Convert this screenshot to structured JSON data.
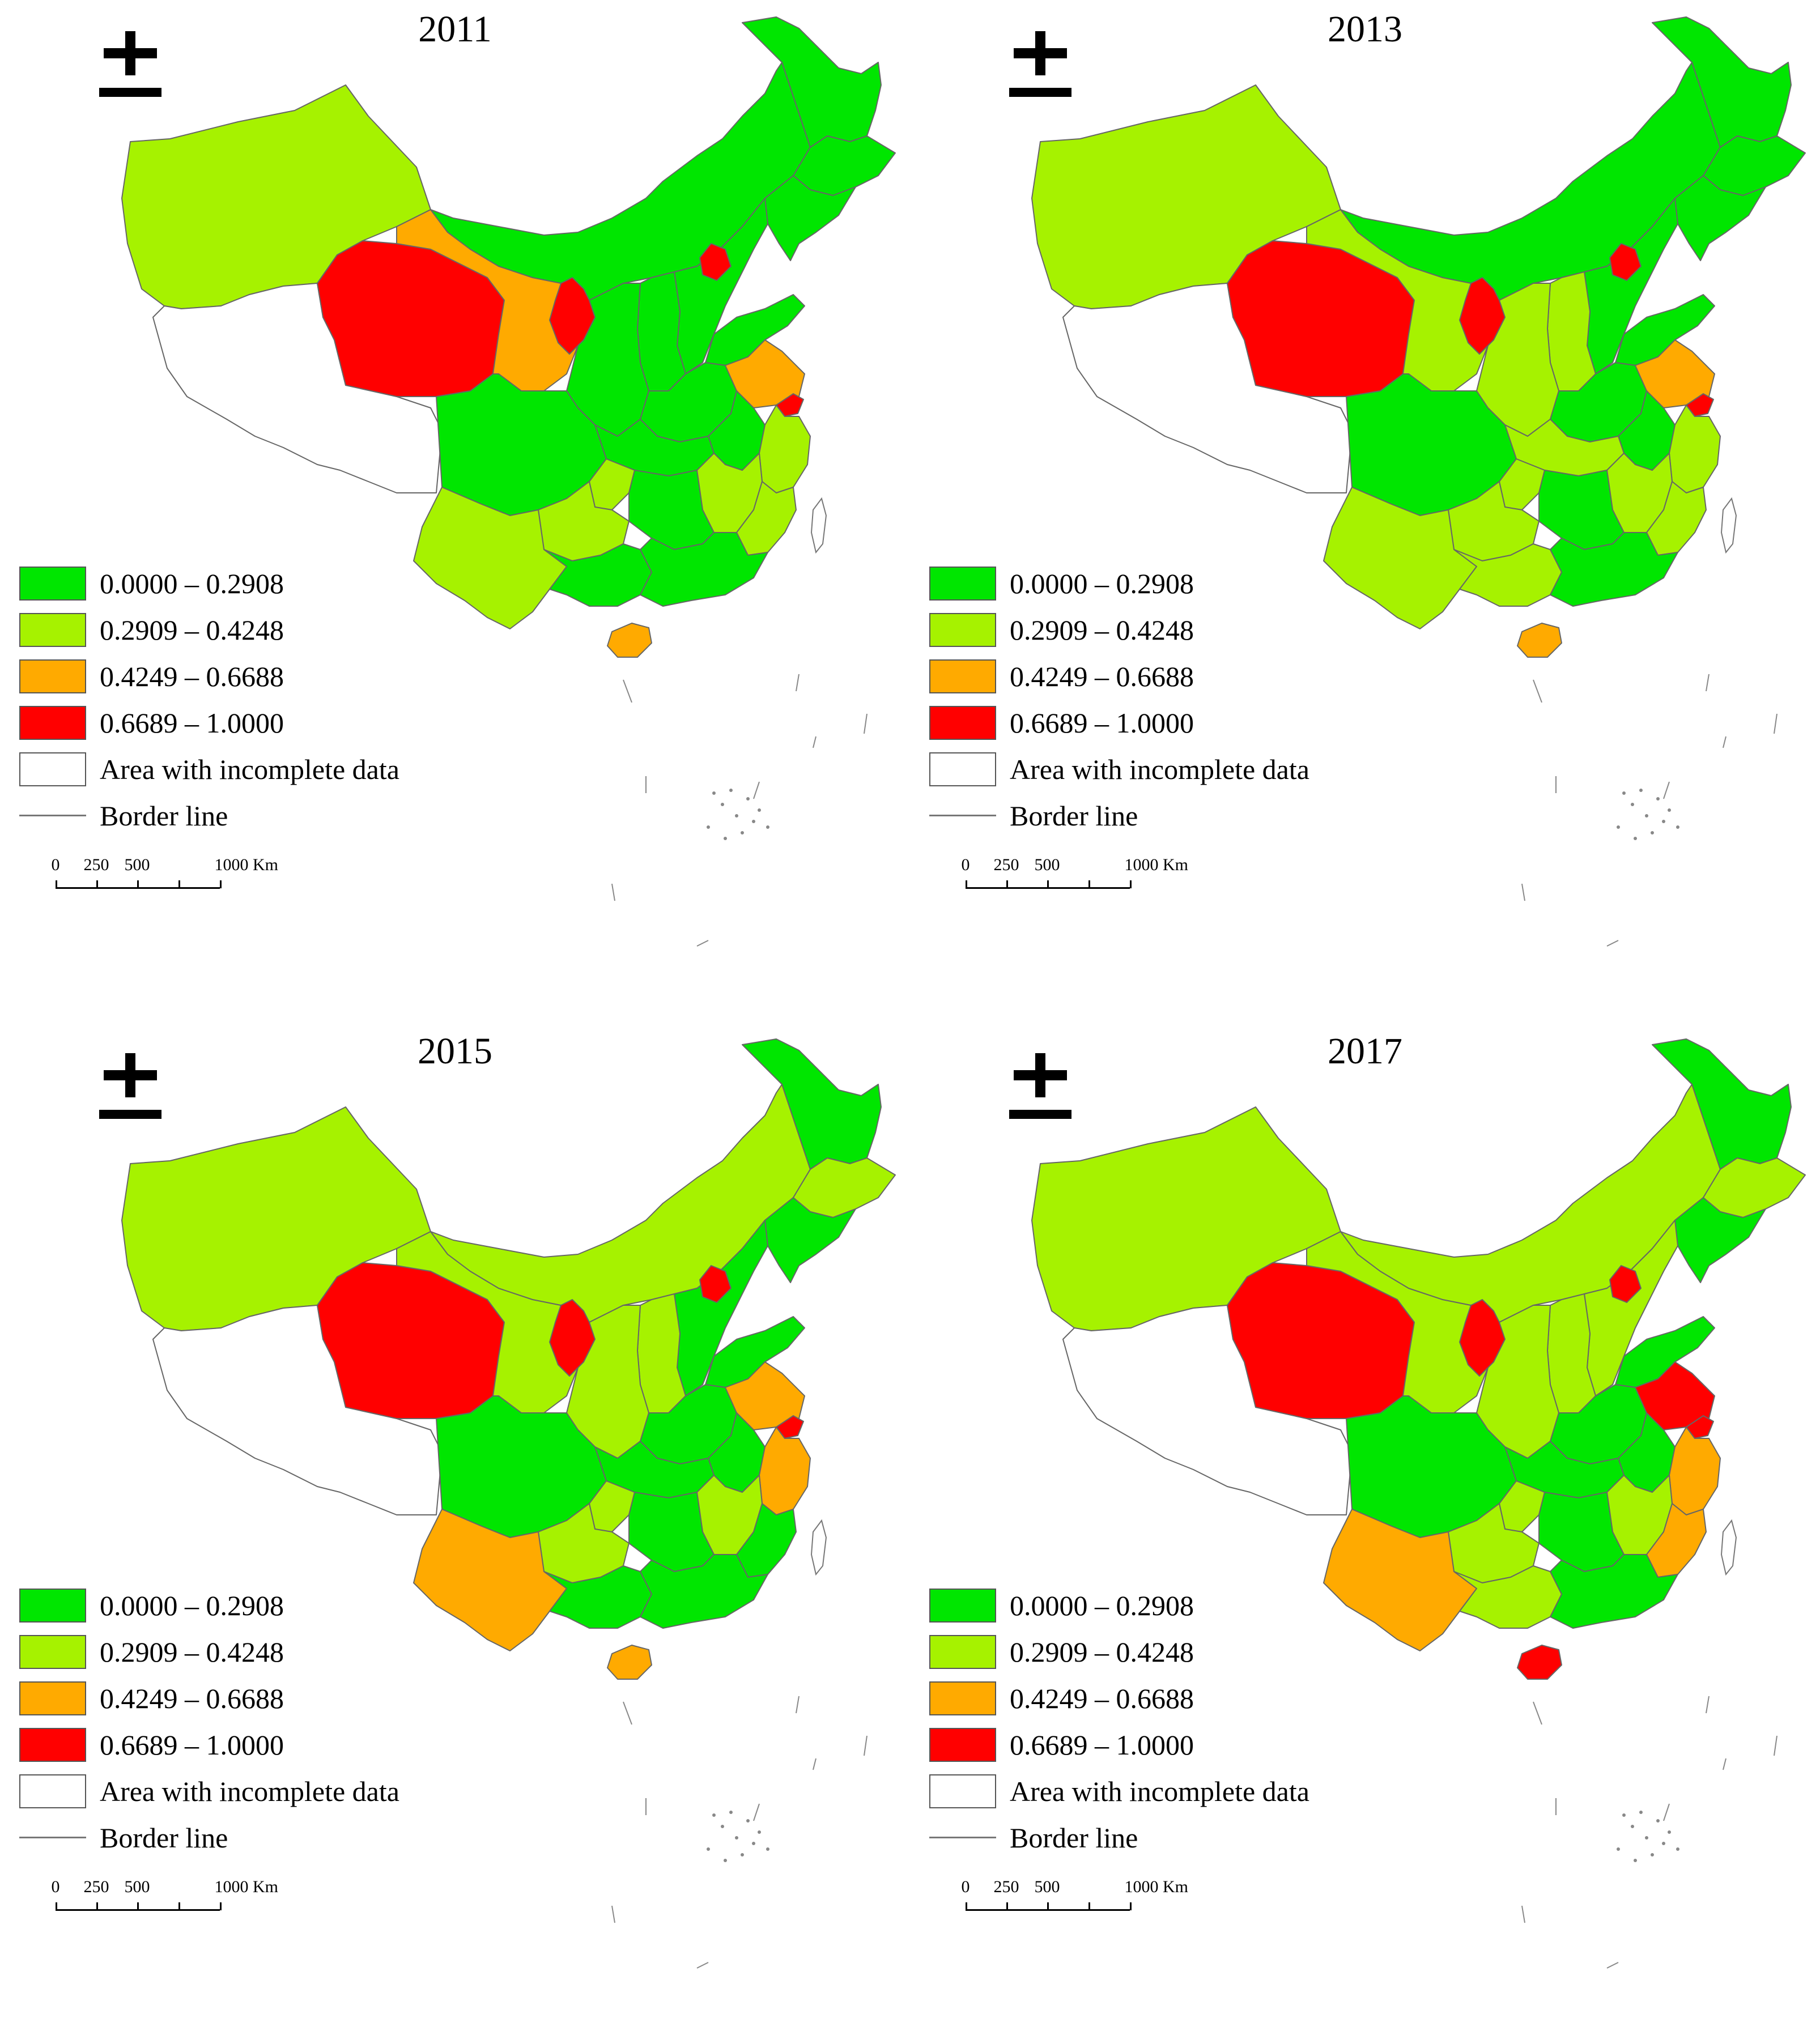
{
  "panels": [
    {
      "year": "2011",
      "colors": {
        "xinjiang": "#a6f200",
        "tibet": "#ffffff",
        "qinghai": "#ff0000",
        "gansu": "#ffaa00",
        "ningxia": "#ff0000",
        "inner_mongolia": "#00e600",
        "heilongjiang": "#00e600",
        "jilin": "#00e600",
        "liaoning": "#00e600",
        "beijing": "#ff0000",
        "hebei": "#00e600",
        "shanxi": "#00e600",
        "shaanxi": "#00e600",
        "henan": "#00e600",
        "shandong": "#00e600",
        "jiangsu": "#ffaa00",
        "shanghai": "#ff0000",
        "anhui": "#00e600",
        "zhejiang": "#a6f200",
        "sichuan": "#00e600",
        "chongqing": "#a6f200",
        "hubei": "#00e600",
        "hunan": "#00e600",
        "jiangxi": "#a6f200",
        "fujian": "#a6f200",
        "yunnan": "#a6f200",
        "guizhou": "#a6f200",
        "guangxi": "#00e600",
        "guangdong": "#00e600",
        "hainan": "#ffaa00"
      }
    },
    {
      "year": "2013",
      "colors": {
        "xinjiang": "#a6f200",
        "tibet": "#ffffff",
        "qinghai": "#ff0000",
        "gansu": "#a6f200",
        "ningxia": "#ff0000",
        "inner_mongolia": "#00e600",
        "heilongjiang": "#00e600",
        "jilin": "#00e600",
        "liaoning": "#00e600",
        "beijing": "#ff0000",
        "hebei": "#00e600",
        "shanxi": "#a6f200",
        "shaanxi": "#a6f200",
        "henan": "#00e600",
        "shandong": "#00e600",
        "jiangsu": "#ffaa00",
        "shanghai": "#ff0000",
        "anhui": "#00e600",
        "zhejiang": "#a6f200",
        "sichuan": "#00e600",
        "chongqing": "#a6f200",
        "hubei": "#a6f200",
        "hunan": "#00e600",
        "jiangxi": "#a6f200",
        "fujian": "#a6f200",
        "yunnan": "#a6f200",
        "guizhou": "#a6f200",
        "guangxi": "#a6f200",
        "guangdong": "#00e600",
        "hainan": "#ffaa00"
      }
    },
    {
      "year": "2015",
      "colors": {
        "xinjiang": "#a6f200",
        "tibet": "#ffffff",
        "qinghai": "#ff0000",
        "gansu": "#a6f200",
        "ningxia": "#ff0000",
        "inner_mongolia": "#a6f200",
        "heilongjiang": "#00e600",
        "jilin": "#a6f200",
        "liaoning": "#00e600",
        "beijing": "#ff0000",
        "hebei": "#00e600",
        "shanxi": "#a6f200",
        "shaanxi": "#a6f200",
        "henan": "#00e600",
        "shandong": "#00e600",
        "jiangsu": "#ffaa00",
        "shanghai": "#ff0000",
        "anhui": "#00e600",
        "zhejiang": "#ffaa00",
        "sichuan": "#00e600",
        "chongqing": "#a6f200",
        "hubei": "#00e600",
        "hunan": "#00e600",
        "jiangxi": "#a6f200",
        "fujian": "#00e600",
        "yunnan": "#ffaa00",
        "guizhou": "#a6f200",
        "guangxi": "#00e600",
        "guangdong": "#00e600",
        "hainan": "#ffaa00"
      }
    },
    {
      "year": "2017",
      "colors": {
        "xinjiang": "#a6f200",
        "tibet": "#ffffff",
        "qinghai": "#ff0000",
        "gansu": "#a6f200",
        "ningxia": "#ff0000",
        "inner_mongolia": "#a6f200",
        "heilongjiang": "#00e600",
        "jilin": "#a6f200",
        "liaoning": "#00e600",
        "beijing": "#ff0000",
        "hebei": "#a6f200",
        "shanxi": "#a6f200",
        "shaanxi": "#a6f200",
        "henan": "#00e600",
        "shandong": "#00e600",
        "jiangsu": "#ff0000",
        "shanghai": "#ff0000",
        "anhui": "#00e600",
        "zhejiang": "#ffaa00",
        "sichuan": "#00e600",
        "chongqing": "#a6f200",
        "hubei": "#00e600",
        "hunan": "#00e600",
        "jiangxi": "#a6f200",
        "fujian": "#ffaa00",
        "yunnan": "#ffaa00",
        "guizhou": "#a6f200",
        "guangxi": "#a6f200",
        "guangdong": "#00e600",
        "hainan": "#ff0000"
      }
    }
  ],
  "legend": {
    "classes": [
      {
        "label": "0.0000 – 0.2908",
        "color": "#00e600"
      },
      {
        "label": "0.2909 – 0.4248",
        "color": "#a6f200"
      },
      {
        "label": "0.4249 – 0.6688",
        "color": "#ffaa00"
      },
      {
        "label": "0.6689 – 1.0000",
        "color": "#ff0000"
      }
    ],
    "incomplete_label": "Area with incomplete data",
    "border_label": "Border line"
  },
  "scale_bar": {
    "labels": [
      "0",
      "250",
      "500",
      "1000 Km"
    ]
  },
  "north_arrow_icon": "north-arrow-icon"
}
